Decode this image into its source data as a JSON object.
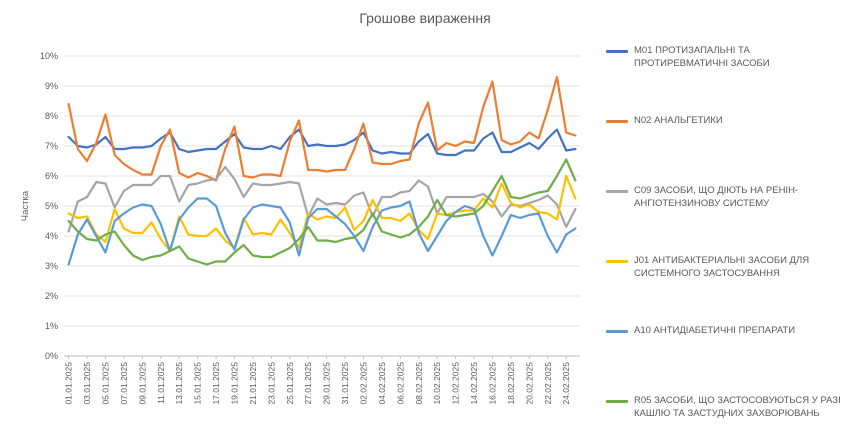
{
  "chart_data": {
    "type": "line",
    "title": "Грошове вираження",
    "xlabel": "",
    "ylabel": "Частка",
    "ylim": [
      0,
      10
    ],
    "y_ticks": [
      "0%",
      "1%",
      "2%",
      "3%",
      "4%",
      "5%",
      "6%",
      "7%",
      "8%",
      "9%",
      "10%"
    ],
    "x_tick_labels": [
      "01.01.2025",
      "03.01.2025",
      "05.01.2025",
      "07.01.2025",
      "09.01.2025",
      "11.01.2025",
      "13.01.2025",
      "15.01.2025",
      "17.01.2025",
      "19.01.2025",
      "21.01.2025",
      "23.01.2025",
      "25.01.2025",
      "27.01.2025",
      "29.01.2025",
      "31.01.2025",
      "02.02.2025",
      "04.02.2025",
      "06.02.2025",
      "08.02.2025",
      "10.02.2025",
      "12.02.2025",
      "14.02.2025",
      "16.02.2025",
      "18.02.2025",
      "20.02.2025",
      "22.02.2025",
      "24.02.2025"
    ],
    "x": [
      "01.01.2025",
      "02.01.2025",
      "03.01.2025",
      "04.01.2025",
      "05.01.2025",
      "06.01.2025",
      "07.01.2025",
      "08.01.2025",
      "09.01.2025",
      "10.01.2025",
      "11.01.2025",
      "12.01.2025",
      "13.01.2025",
      "14.01.2025",
      "15.01.2025",
      "16.01.2025",
      "17.01.2025",
      "18.01.2025",
      "19.01.2025",
      "20.01.2025",
      "21.01.2025",
      "22.01.2025",
      "23.01.2025",
      "24.01.2025",
      "25.01.2025",
      "26.01.2025",
      "27.01.2025",
      "28.01.2025",
      "29.01.2025",
      "30.01.2025",
      "31.01.2025",
      "01.02.2025",
      "02.02.2025",
      "03.02.2025",
      "04.02.2025",
      "05.02.2025",
      "06.02.2025",
      "07.02.2025",
      "08.02.2025",
      "09.02.2025",
      "10.02.2025",
      "11.02.2025",
      "12.02.2025",
      "13.02.2025",
      "14.02.2025",
      "15.02.2025",
      "16.02.2025",
      "17.02.2025",
      "18.02.2025",
      "19.02.2025",
      "20.02.2025",
      "21.02.2025",
      "22.02.2025",
      "23.02.2025",
      "24.02.2025",
      "25.02.2025"
    ],
    "series": [
      {
        "name": "M01 ПРОТИЗАПАЛЬНІ ТА ПРОТИРЕВМАТИЧНІ ЗАСОБИ",
        "color": "#4472C4",
        "values": [
          7.3,
          7.0,
          6.95,
          7.05,
          7.3,
          6.9,
          6.9,
          6.95,
          6.95,
          7.0,
          7.25,
          7.45,
          6.9,
          6.8,
          6.85,
          6.9,
          6.9,
          7.15,
          7.4,
          6.95,
          6.9,
          6.9,
          7.0,
          6.9,
          7.3,
          7.55,
          7.0,
          7.05,
          7.0,
          7.0,
          7.05,
          7.2,
          7.45,
          6.85,
          6.75,
          6.8,
          6.75,
          6.75,
          7.15,
          7.4,
          6.75,
          6.7,
          6.7,
          6.85,
          6.85,
          7.25,
          7.45,
          6.8,
          6.8,
          6.95,
          7.1,
          6.9,
          7.25,
          7.55,
          6.85,
          6.9
        ]
      },
      {
        "name": "N02 АНАЛЬГЕТИКИ",
        "color": "#ED7D31",
        "values": [
          8.4,
          6.9,
          6.5,
          7.1,
          8.05,
          6.7,
          6.4,
          6.2,
          6.05,
          6.05,
          7.0,
          7.55,
          6.1,
          5.95,
          6.1,
          6.0,
          5.85,
          6.9,
          7.65,
          6.0,
          5.95,
          6.05,
          6.05,
          6.0,
          7.15,
          7.85,
          6.2,
          6.2,
          6.15,
          6.2,
          6.2,
          6.9,
          7.75,
          6.45,
          6.4,
          6.4,
          6.5,
          6.55,
          7.75,
          8.45,
          6.85,
          7.1,
          7.0,
          7.15,
          7.1,
          8.3,
          9.15,
          7.2,
          7.05,
          7.15,
          7.45,
          7.25,
          8.2,
          9.3,
          7.45,
          7.35
        ]
      },
      {
        "name": "C09 ЗАСОБИ, ЩО ДІЮТЬ НА РЕНІН-АНГІОТЕНЗИНОВУ СИСТЕМУ",
        "color": "#A5A5A5",
        "values": [
          4.15,
          5.15,
          5.3,
          5.8,
          5.75,
          4.95,
          5.5,
          5.7,
          5.7,
          5.7,
          6.0,
          6.0,
          5.15,
          5.7,
          5.75,
          5.85,
          5.9,
          6.3,
          5.9,
          5.3,
          5.75,
          5.7,
          5.7,
          5.75,
          5.8,
          5.75,
          4.65,
          5.25,
          5.05,
          5.1,
          5.05,
          5.35,
          5.45,
          4.65,
          5.3,
          5.3,
          5.45,
          5.5,
          5.85,
          5.65,
          4.75,
          5.3,
          5.3,
          5.3,
          5.3,
          5.4,
          5.15,
          4.65,
          5.05,
          5.0,
          5.1,
          5.2,
          5.35,
          5.05,
          4.3,
          4.9
        ]
      },
      {
        "name": "J01 АНТИБАКТЕРІАЛЬНІ ЗАСОБИ ДЛЯ СИСТЕМНОГО ЗАСТОСУВАННЯ",
        "color": "#FFC000",
        "values": [
          4.75,
          4.6,
          4.65,
          4.05,
          3.8,
          4.9,
          4.25,
          4.1,
          4.1,
          4.45,
          3.9,
          3.5,
          4.65,
          4.05,
          4.0,
          4.0,
          4.25,
          3.85,
          3.6,
          4.6,
          4.05,
          4.1,
          4.05,
          4.55,
          4.1,
          3.6,
          4.75,
          4.55,
          4.65,
          4.6,
          4.95,
          4.2,
          4.5,
          5.2,
          4.6,
          4.6,
          4.5,
          4.75,
          4.2,
          3.9,
          4.75,
          4.7,
          4.8,
          4.85,
          4.85,
          5.25,
          4.95,
          5.75,
          5.1,
          4.95,
          5.05,
          4.8,
          4.75,
          4.55,
          6.0,
          5.25
        ]
      },
      {
        "name": "A10 АНТИДІАБЕТИЧНІ ПРЕПАРАТИ",
        "color": "#5B9BD5",
        "values": [
          3.05,
          4.05,
          4.55,
          4.0,
          3.45,
          4.5,
          4.75,
          4.95,
          5.05,
          5.0,
          4.4,
          3.5,
          4.55,
          4.95,
          5.25,
          5.25,
          5.0,
          4.1,
          3.55,
          4.55,
          4.95,
          5.05,
          5.0,
          4.95,
          4.45,
          3.35,
          4.6,
          4.9,
          4.9,
          4.65,
          4.4,
          4.0,
          3.5,
          4.3,
          4.85,
          4.95,
          5.0,
          5.15,
          4.1,
          3.5,
          4.0,
          4.5,
          4.8,
          5.0,
          4.9,
          4.0,
          3.35,
          4.0,
          4.7,
          4.6,
          4.7,
          4.75,
          4.0,
          3.45,
          4.05,
          4.25
        ]
      },
      {
        "name": "R05 ЗАСОБИ, ЩО ЗАСТОСОВУЮТЬСЯ У РАЗІ КАШЛЮ ТА ЗАСТУДНИХ ЗАХВОРЮВАНЬ",
        "color": "#70AD47",
        "values": [
          4.5,
          4.15,
          3.9,
          3.85,
          4.05,
          4.15,
          3.7,
          3.35,
          3.2,
          3.3,
          3.35,
          3.5,
          3.65,
          3.25,
          3.15,
          3.05,
          3.15,
          3.15,
          3.45,
          3.7,
          3.35,
          3.3,
          3.3,
          3.45,
          3.6,
          3.9,
          4.3,
          3.85,
          3.85,
          3.8,
          3.9,
          3.95,
          4.2,
          4.75,
          4.15,
          4.05,
          3.95,
          4.05,
          4.3,
          4.65,
          5.2,
          4.7,
          4.65,
          4.7,
          4.75,
          5.0,
          5.5,
          6.0,
          5.3,
          5.25,
          5.35,
          5.45,
          5.5,
          6.0,
          6.55,
          5.85
        ]
      }
    ],
    "grid": true,
    "legend_position": "right"
  }
}
